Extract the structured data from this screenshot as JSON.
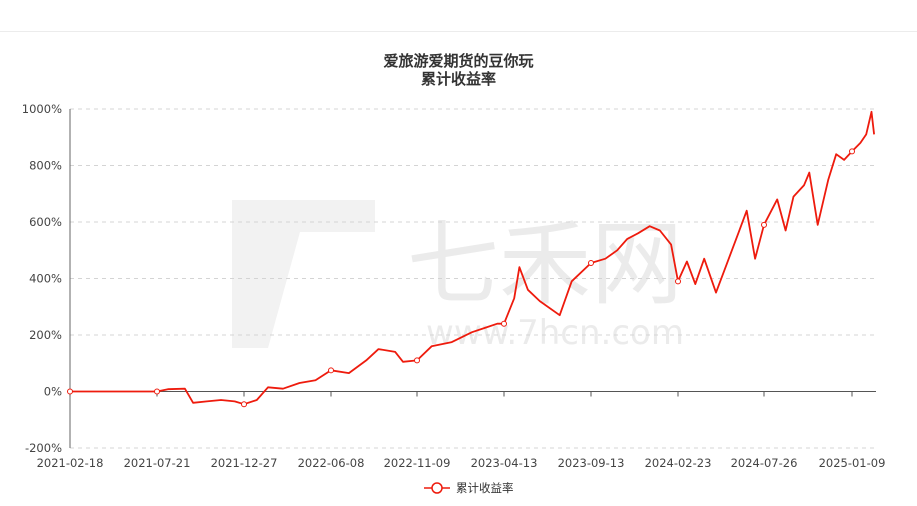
{
  "chart_data": {
    "type": "line",
    "title": "爱旅游爱期货的豆你玩",
    "subtitle": "累计收益率",
    "xlabel": "",
    "ylabel": "",
    "ylim": [
      -200,
      1000
    ],
    "y_tick_labels": [
      "-200%",
      "0%",
      "200%",
      "400%",
      "600%",
      "800%",
      "1000%"
    ],
    "x_tick_labels": [
      "2021-02-18",
      "2021-07-21",
      "2021-12-27",
      "2022-06-08",
      "2022-11-09",
      "2023-04-13",
      "2023-09-13",
      "2024-02-23",
      "2024-07-26",
      "2025-01-09"
    ],
    "grid": "horizontal dashed",
    "legend_position": "bottom-center",
    "series": [
      {
        "name": "累计收益率",
        "color": "#ee1b0d",
        "points": [
          [
            "2021-02-18",
            0
          ],
          [
            "2021-07-21",
            0
          ],
          [
            "2021-08-10",
            8
          ],
          [
            "2021-09-10",
            10
          ],
          [
            "2021-09-25",
            -40
          ],
          [
            "2021-10-20",
            -35
          ],
          [
            "2021-11-15",
            -30
          ],
          [
            "2021-12-10",
            -35
          ],
          [
            "2021-12-27",
            -45
          ],
          [
            "2022-01-20",
            -30
          ],
          [
            "2022-02-10",
            15
          ],
          [
            "2022-03-10",
            10
          ],
          [
            "2022-04-10",
            30
          ],
          [
            "2022-05-10",
            40
          ],
          [
            "2022-06-08",
            75
          ],
          [
            "2022-07-10",
            65
          ],
          [
            "2022-08-10",
            110
          ],
          [
            "2022-09-01",
            150
          ],
          [
            "2022-10-01",
            140
          ],
          [
            "2022-10-15",
            105
          ],
          [
            "2022-11-09",
            110
          ],
          [
            "2022-12-05",
            160
          ],
          [
            "2023-01-10",
            175
          ],
          [
            "2023-02-15",
            210
          ],
          [
            "2023-03-10",
            225
          ],
          [
            "2023-04-01",
            240
          ],
          [
            "2023-04-13",
            240
          ],
          [
            "2023-05-01",
            330
          ],
          [
            "2023-05-10",
            440
          ],
          [
            "2023-05-25",
            360
          ],
          [
            "2023-06-15",
            320
          ],
          [
            "2023-07-20",
            270
          ],
          [
            "2023-08-10",
            390
          ],
          [
            "2023-09-13",
            455
          ],
          [
            "2023-10-10",
            470
          ],
          [
            "2023-11-01",
            500
          ],
          [
            "2023-11-20",
            540
          ],
          [
            "2023-12-10",
            560
          ],
          [
            "2024-01-01",
            585
          ],
          [
            "2024-01-20",
            570
          ],
          [
            "2024-02-10",
            520
          ],
          [
            "2024-02-23",
            390
          ],
          [
            "2024-03-10",
            460
          ],
          [
            "2024-03-25",
            380
          ],
          [
            "2024-04-10",
            470
          ],
          [
            "2024-05-01",
            350
          ],
          [
            "2024-05-20",
            450
          ],
          [
            "2024-06-10",
            560
          ],
          [
            "2024-06-25",
            640
          ],
          [
            "2024-07-10",
            470
          ],
          [
            "2024-07-26",
            590
          ],
          [
            "2024-08-20",
            680
          ],
          [
            "2024-09-05",
            570
          ],
          [
            "2024-09-20",
            690
          ],
          [
            "2024-10-10",
            730
          ],
          [
            "2024-10-20",
            775
          ],
          [
            "2024-11-05",
            590
          ],
          [
            "2024-11-25",
            750
          ],
          [
            "2024-12-10",
            840
          ],
          [
            "2024-12-25",
            820
          ],
          [
            "2025-01-09",
            850
          ],
          [
            "2025-01-25",
            880
          ],
          [
            "2025-02-05",
            910
          ],
          [
            "2025-02-15",
            990
          ],
          [
            "2025-02-20",
            910
          ]
        ]
      }
    ],
    "marker_dates": [
      "2021-02-18",
      "2021-07-21",
      "2021-12-27",
      "2022-06-08",
      "2022-11-09",
      "2023-04-13",
      "2023-09-13",
      "2024-02-23",
      "2024-07-26",
      "2025-01-09"
    ]
  },
  "watermark": {
    "brand": "七禾网",
    "url": "www.7hcn.com",
    "color": "#ebebeb"
  }
}
